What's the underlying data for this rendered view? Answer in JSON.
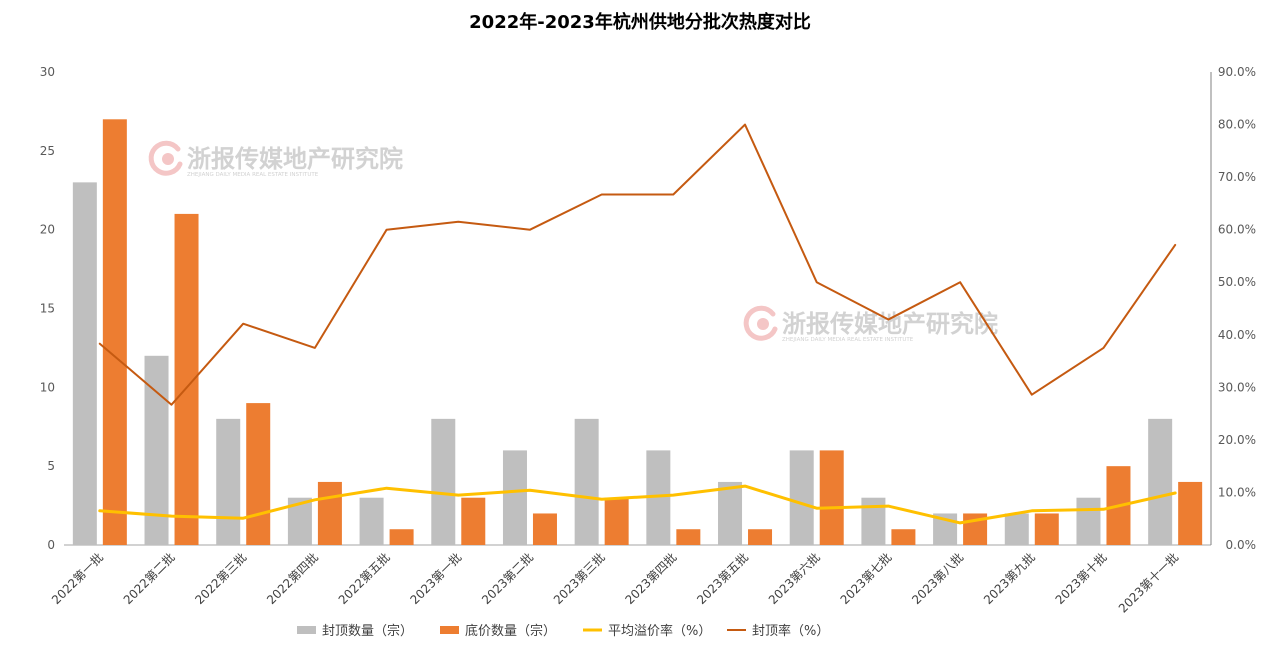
{
  "chart_data": {
    "type": "bar",
    "title": "2022年-2023年杭州供地分批次热度对比",
    "categories": [
      "2022第一批",
      "2022第二批",
      "2022第三批",
      "2022第四批",
      "2022第五批",
      "2023第一批",
      "2023第二批",
      "2023第三批",
      "2023第四批",
      "2023第五批",
      "2023第六批",
      "2023第七批",
      "2023第八批",
      "2023第九批",
      "2023第十批",
      "2023第十一批"
    ],
    "y_left": {
      "ylim": [
        0,
        30
      ],
      "ticks": [
        "0",
        "5",
        "10",
        "15",
        "20",
        "25",
        "30"
      ]
    },
    "y_right": {
      "ylim": [
        0,
        90
      ],
      "ticks": [
        "0.0%",
        "10.0%",
        "20.0%",
        "30.0%",
        "40.0%",
        "50.0%",
        "60.0%",
        "70.0%",
        "80.0%",
        "90.0%"
      ]
    },
    "series": [
      {
        "name": "封顶数量（宗）",
        "type": "bar",
        "axis": "left",
        "color": "#BFBFBF",
        "values": [
          23,
          12,
          8,
          3,
          3,
          8,
          6,
          8,
          6,
          4,
          6,
          3,
          2,
          2,
          3,
          8
        ]
      },
      {
        "name": "底价数量（宗）",
        "type": "bar",
        "axis": "left",
        "color": "#ED7D31",
        "values": [
          27,
          21,
          9,
          4,
          1,
          3,
          2,
          3,
          1,
          1,
          6,
          1,
          2,
          2,
          5,
          4
        ]
      },
      {
        "name": "平均溢价率（%）",
        "type": "line",
        "axis": "right",
        "color": "#FFC000",
        "values": [
          6.5,
          5.5,
          5.1,
          8.6,
          10.8,
          9.5,
          10.4,
          8.7,
          9.5,
          11.2,
          7.0,
          7.4,
          4.2,
          6.5,
          6.8,
          9.9
        ]
      },
      {
        "name": "封顶率（%）",
        "type": "line",
        "axis": "right",
        "color": "#C55A11",
        "values": [
          38.3,
          26.7,
          42.1,
          37.5,
          60.0,
          61.5,
          60.0,
          66.7,
          66.7,
          80.0,
          50.0,
          42.9,
          50.0,
          28.6,
          37.5,
          57.1
        ]
      }
    ],
    "legend": "bottom",
    "grid": false
  },
  "watermark": {
    "name": "浙报传媒地产研究院",
    "subtitle": "ZHEJIANG DAILY MEDIA REAL ESTATE INSTITUTE"
  }
}
